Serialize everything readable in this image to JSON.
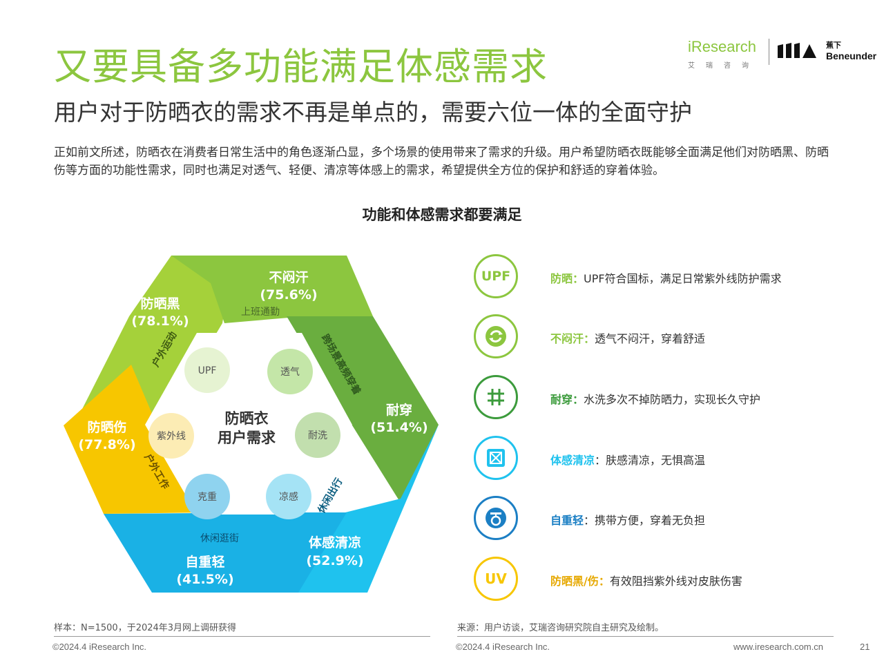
{
  "header": {
    "title": "又要具备多功能满足体感需求",
    "subtitle": "用户对于防晒衣的需求不再是单点的，需要六位一体的全面守护",
    "logo_iresearch": "iResearch",
    "logo_iresearch_cn": "艾瑞咨询",
    "logo_beneunder_cn": "蕉下",
    "logo_beneunder": "Beneunder"
  },
  "intro": "正如前文所述，防晒衣在消费者日常生活中的角色逐渐凸显，多个场景的使用带来了需求的升级。用户希望防晒衣既能够全面满足他们对防晒黑、防晒伤等方面的功能性需求，同时也满足对透气、轻便、清凉等体感上的需求，希望提供全方位的保护和舒适的穿着体验。",
  "chart_title": "功能和体感需求都要满足",
  "hexagon": {
    "center": [
      "防晒衣",
      "用户需求"
    ],
    "segments": [
      {
        "name": "不闷汗",
        "value": "(75.6%)",
        "color": "#8cc63f"
      },
      {
        "name": "耐穿",
        "value": "(51.4%)",
        "color": "#6aae3f"
      },
      {
        "name": "体感清凉",
        "value": "(52.9%)",
        "color": "#1fc2ee"
      },
      {
        "name": "自重轻",
        "value": "(41.5%)",
        "color": "#1ab1e5"
      },
      {
        "name": "防晒伤",
        "value": "(77.8%)",
        "color": "#f7c600"
      },
      {
        "name": "防晒黑",
        "value": "(78.1%)",
        "color": "#a5d13a"
      }
    ],
    "scenes": [
      "上班通勤",
      "跨场景高频穿着",
      "休闲出行",
      "休闲逛街",
      "户外工作",
      "户外运动"
    ],
    "inner_circles": [
      {
        "label": "UPF",
        "color": "#e6f3d2"
      },
      {
        "label": "透气",
        "color": "#c4e6a8"
      },
      {
        "label": "耐洗",
        "color": "#c2dfae"
      },
      {
        "label": "凉感",
        "color": "#a5e3f5"
      },
      {
        "label": "克重",
        "color": "#8fd3ef"
      },
      {
        "label": "紫外线",
        "color": "#fcecb4"
      }
    ]
  },
  "features": [
    {
      "icon": "UPF",
      "icon_name": "upf-icon",
      "color": "#8cc63f",
      "key": "防晒：",
      "desc": "UPF符合国标，满足日常紫外线防护需求"
    },
    {
      "icon": "⟳",
      "icon_name": "recycle-arrows-icon",
      "color": "#8cc63f",
      "key": "不闷汗：",
      "desc": "透气不闷汗，穿着舒适"
    },
    {
      "icon": "#",
      "icon_name": "grid-icon",
      "color": "#3c9b3c",
      "key": "耐穿：",
      "desc": "水洗多次不掉防晒力，实现长久守护"
    },
    {
      "icon": "▦",
      "icon_name": "cool-fabric-icon",
      "color": "#1fc2ee",
      "key": "体感清凉",
      "desc": "：肤感清凉，无惧高温"
    },
    {
      "icon": "⚖",
      "icon_name": "scale-icon",
      "color": "#1b7fc4",
      "key": "自重轻",
      "desc": "：携带方便，穿着无负担"
    },
    {
      "icon": "UV",
      "icon_name": "uv-icon",
      "color": "#f7c600",
      "key": "防晒黑/伤：",
      "desc": "有效阻挡紫外线对皮肤伤害"
    }
  ],
  "footer": {
    "sample": "样本：N=1500，于2024年3月网上调研获得",
    "source": "来源：用户访谈，艾瑞咨询研究院自主研究及绘制。",
    "copyright_left": "©2024.4 iResearch Inc.",
    "copyright_right": "©2024.4 iResearch Inc.",
    "website": "www.iresearch.com.cn",
    "page": "21"
  }
}
